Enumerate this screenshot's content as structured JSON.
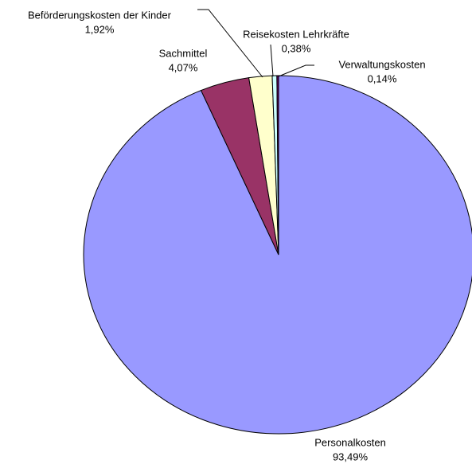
{
  "chart_data": {
    "type": "pie",
    "categories": [
      "Personalkosten",
      "Sachmittel",
      "Beförderungskosten der Kinder",
      "Reisekosten Lehrkräfte",
      "Verwaltungskosten"
    ],
    "values": [
      93.49,
      4.07,
      1.92,
      0.38,
      0.14
    ],
    "value_labels": [
      "93,49%",
      "4,07%",
      "1,92%",
      "0,38%",
      "0,14%"
    ],
    "colors": [
      "#9999ff",
      "#993366",
      "#ffffcc",
      "#ccffff",
      "#660066"
    ]
  }
}
